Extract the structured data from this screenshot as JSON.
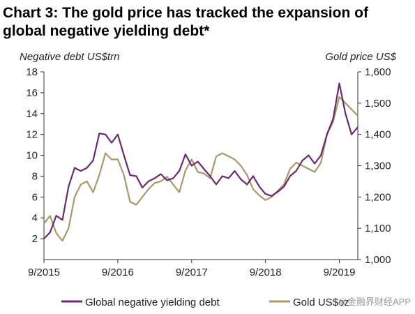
{
  "chart_data": {
    "type": "line",
    "title": "Chart 3: The gold price has tracked the expansion of global negative yielding debt*",
    "y_left_label": "Negative debt US$trn",
    "y_right_label": "Gold price US$",
    "y_left_range": [
      0,
      18
    ],
    "y_left_ticks": [
      "18",
      "16",
      "14",
      "12",
      "10",
      "8",
      "6",
      "4",
      "2"
    ],
    "y_right_range": [
      1000,
      1600
    ],
    "y_right_ticks": [
      "1,600",
      "1,500",
      "1,400",
      "1,300",
      "1,200",
      "1,100",
      "1,000"
    ],
    "x_range": [
      2015.667,
      2019.917
    ],
    "x_ticks": [
      {
        "x": 2015.667,
        "label": "9/2015"
      },
      {
        "x": 2016.667,
        "label": "9/2016"
      },
      {
        "x": 2017.667,
        "label": "9/2017"
      },
      {
        "x": 2018.667,
        "label": "9/2018"
      },
      {
        "x": 2019.667,
        "label": "9/2019"
      }
    ],
    "grid": false,
    "legend_position": "bottom",
    "series": [
      {
        "name": "Global negative yielding debt",
        "axis": "left",
        "color": "#6a2a6e",
        "x": [
          2015.667,
          2015.75,
          2015.833,
          2015.917,
          2016.0,
          2016.083,
          2016.167,
          2016.25,
          2016.333,
          2016.417,
          2016.5,
          2016.583,
          2016.667,
          2016.75,
          2016.833,
          2016.917,
          2017.0,
          2017.083,
          2017.167,
          2017.25,
          2017.333,
          2017.417,
          2017.5,
          2017.583,
          2017.667,
          2017.75,
          2017.833,
          2017.917,
          2018.0,
          2018.083,
          2018.167,
          2018.25,
          2018.333,
          2018.417,
          2018.5,
          2018.583,
          2018.667,
          2018.75,
          2018.833,
          2018.917,
          2019.0,
          2019.083,
          2019.167,
          2019.25,
          2019.333,
          2019.417,
          2019.5,
          2019.583,
          2019.667,
          2019.75,
          2019.833,
          2019.917
        ],
        "y": [
          2.0,
          2.6,
          4.2,
          3.8,
          7.0,
          8.8,
          8.5,
          8.8,
          9.5,
          12.1,
          12.0,
          11.2,
          12.0,
          10.0,
          8.1,
          8.0,
          6.9,
          7.5,
          7.8,
          8.2,
          7.6,
          7.8,
          8.5,
          10.1,
          9.0,
          9.4,
          8.7,
          8.0,
          7.2,
          8.0,
          7.8,
          8.5,
          7.7,
          7.2,
          8.0,
          7.0,
          6.3,
          6.1,
          6.5,
          7.0,
          8.0,
          8.5,
          9.5,
          10.0,
          9.2,
          10.0,
          12.0,
          13.5,
          16.9,
          14.0,
          12.0,
          12.7
        ]
      },
      {
        "name": "Gold US$oz",
        "axis": "right",
        "color": "#a8996a",
        "x": [
          2015.667,
          2015.75,
          2015.833,
          2015.917,
          2016.0,
          2016.083,
          2016.167,
          2016.25,
          2016.333,
          2016.417,
          2016.5,
          2016.583,
          2016.667,
          2016.75,
          2016.833,
          2016.917,
          2017.0,
          2017.083,
          2017.167,
          2017.25,
          2017.333,
          2017.417,
          2017.5,
          2017.583,
          2017.667,
          2017.75,
          2017.833,
          2017.917,
          2018.0,
          2018.083,
          2018.167,
          2018.25,
          2018.333,
          2018.417,
          2018.5,
          2018.583,
          2018.667,
          2018.75,
          2018.833,
          2018.917,
          2019.0,
          2019.083,
          2019.167,
          2019.25,
          2019.333,
          2019.417,
          2019.5,
          2019.583,
          2019.667,
          2019.75,
          2019.833,
          2019.917
        ],
        "y": [
          1115,
          1140,
          1085,
          1060,
          1100,
          1200,
          1240,
          1250,
          1215,
          1270,
          1340,
          1320,
          1320,
          1270,
          1185,
          1175,
          1200,
          1225,
          1245,
          1250,
          1265,
          1240,
          1215,
          1285,
          1320,
          1280,
          1275,
          1260,
          1330,
          1340,
          1330,
          1320,
          1300,
          1270,
          1225,
          1205,
          1190,
          1200,
          1220,
          1240,
          1290,
          1310,
          1300,
          1290,
          1280,
          1310,
          1400,
          1440,
          1520,
          1500,
          1480,
          1460
        ]
      }
    ]
  },
  "watermark": "@金融界财经APP"
}
